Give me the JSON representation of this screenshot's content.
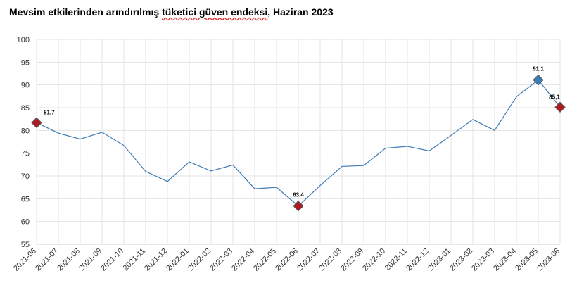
{
  "title": {
    "part1": "Mevsim etkilerinden arındırılmış ",
    "part2": "tüketici güven endeksi",
    "part3": ", Haziran 2023"
  },
  "chart_data": {
    "type": "line",
    "title": "Mevsim etkilerinden arındırılmış tüketici güven endeksi, Haziran 2023",
    "categories": [
      "2021-06",
      "2021-07",
      "2021-08",
      "2021-09",
      "2021-10",
      "2021-11",
      "2021-12",
      "2022-01",
      "2022-02",
      "2022-03",
      "2022-04",
      "2022-05",
      "2022-06",
      "2022-07",
      "2022-08",
      "2022-09",
      "2022-10",
      "2022-11",
      "2022-12",
      "2023-01",
      "2023-02",
      "2023-03",
      "2023-04",
      "2023-05",
      "2023-06"
    ],
    "values": [
      81.7,
      79.4,
      78.1,
      79.6,
      76.7,
      71.0,
      68.8,
      73.1,
      71.1,
      72.4,
      67.2,
      67.5,
      63.4,
      67.9,
      72.1,
      72.3,
      76.1,
      76.5,
      75.5,
      78.9,
      82.4,
      80.0,
      87.4,
      91.1,
      85.1
    ],
    "ylim": [
      55,
      100
    ],
    "yticks": [
      "55",
      "60",
      "65",
      "70",
      "75",
      "80",
      "85",
      "90",
      "95",
      "100"
    ],
    "grid": true,
    "line_color": "#3d7ab8",
    "highlighted_points": [
      {
        "category": "2021-06",
        "label": "81,7",
        "color": "#b01b22"
      },
      {
        "category": "2022-06",
        "label": "63,4",
        "color": "#b01b22"
      },
      {
        "category": "2023-05",
        "label": "91,1",
        "color": "#3d7ab8"
      },
      {
        "category": "2023-06",
        "label": "85,1",
        "color": "#b01b22"
      }
    ]
  }
}
